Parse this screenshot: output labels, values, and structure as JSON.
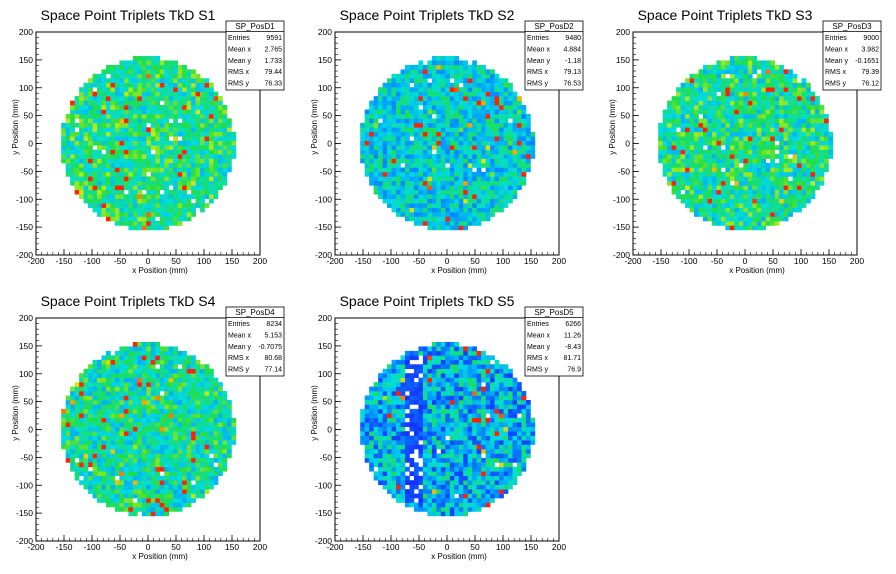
{
  "x_axis_label": "x Position (mm)",
  "y_axis_label": "y Position (mm)",
  "stats_labels": {
    "entries": "Entries",
    "mean_x": "Mean x",
    "mean_y": "Mean y",
    "rms_x": "RMS x",
    "rms_y": "RMS y"
  },
  "colors": {
    "low": "#1a1aff",
    "mid": "#00ccdd",
    "high": "#22dd44",
    "peak": "#ff3300",
    "frame": "#000000",
    "background": "#ffffff"
  },
  "chart_data": [
    {
      "type": "heatmap",
      "title": "Space Point Triplets TkD S1",
      "stats_name": "SP_PosD1",
      "stats": {
        "entries": "9591",
        "mean_x": "2.765",
        "mean_y": "1.733",
        "rms_x": "79.44",
        "rms_y": "76.33"
      },
      "xlabel": "x Position (mm)",
      "ylabel": "y Position (mm)",
      "xlim": [
        -200,
        200
      ],
      "ylim": [
        -200,
        200
      ],
      "xticks": [
        -200,
        -150,
        -100,
        -50,
        0,
        50,
        100,
        150,
        200
      ],
      "yticks": [
        -200,
        -150,
        -100,
        -50,
        0,
        50,
        100,
        150,
        200
      ],
      "radius": 155,
      "bin_width": 8,
      "occupancy": "uniform disk"
    },
    {
      "type": "heatmap",
      "title": "Space Point Triplets TkD S2",
      "stats_name": "SP_PosD2",
      "stats": {
        "entries": "9480",
        "mean_x": "4.884",
        "mean_y": "-1.18",
        "rms_x": "79.13",
        "rms_y": "76.53"
      },
      "xlabel": "x Position (mm)",
      "ylabel": "y Position (mm)",
      "xlim": [
        -200,
        200
      ],
      "ylim": [
        -200,
        200
      ],
      "xticks": [
        -200,
        -150,
        -100,
        -50,
        0,
        50,
        100,
        150,
        200
      ],
      "yticks": [
        -200,
        -150,
        -100,
        -50,
        0,
        50,
        100,
        150,
        200
      ],
      "radius": 155,
      "bin_width": 8,
      "occupancy": "uniform disk, lower density"
    },
    {
      "type": "heatmap",
      "title": "Space Point Triplets TkD S3",
      "stats_name": "SP_PosD3",
      "stats": {
        "entries": "9000",
        "mean_x": "3.982",
        "mean_y": "-0.1651",
        "rms_x": "79.39",
        "rms_y": "76.12"
      },
      "xlabel": "x Position (mm)",
      "ylabel": "y Position (mm)",
      "xlim": [
        -200,
        200
      ],
      "ylim": [
        -200,
        200
      ],
      "xticks": [
        -200,
        -150,
        -100,
        -50,
        0,
        50,
        100,
        150,
        200
      ],
      "yticks": [
        -200,
        -150,
        -100,
        -50,
        0,
        50,
        100,
        150,
        200
      ],
      "radius": 155,
      "bin_width": 8,
      "occupancy": "uniform disk"
    },
    {
      "type": "heatmap",
      "title": "Space Point Triplets TkD S4",
      "stats_name": "SP_PosD4",
      "stats": {
        "entries": "8234",
        "mean_x": "5.153",
        "mean_y": "-0.7075",
        "rms_x": "80.68",
        "rms_y": "77.14"
      },
      "xlabel": "x Position (mm)",
      "ylabel": "y Position (mm)",
      "xlim": [
        -200,
        200
      ],
      "ylim": [
        -200,
        200
      ],
      "xticks": [
        -200,
        -150,
        -100,
        -50,
        0,
        50,
        100,
        150,
        200
      ],
      "yticks": [
        -200,
        -150,
        -100,
        -50,
        0,
        50,
        100,
        150,
        200
      ],
      "radius": 155,
      "bin_width": 8,
      "occupancy": "uniform disk"
    },
    {
      "type": "heatmap",
      "title": "Space Point Triplets TkD S5",
      "stats_name": "SP_PosD5",
      "stats": {
        "entries": "6266",
        "mean_x": "11.26",
        "mean_y": "-8.43",
        "rms_x": "81.71",
        "rms_y": "76.9"
      },
      "xlabel": "x Position (mm)",
      "ylabel": "y Position (mm)",
      "xlim": [
        -200,
        200
      ],
      "ylim": [
        -200,
        200
      ],
      "xticks": [
        -200,
        -150,
        -100,
        -50,
        0,
        50,
        100,
        150,
        200
      ],
      "yticks": [
        -200,
        -150,
        -100,
        -50,
        0,
        50,
        100,
        150,
        200
      ],
      "radius": 155,
      "bin_width": 8,
      "occupancy": "disk with sparse vertical band near x = -60 mm"
    }
  ]
}
